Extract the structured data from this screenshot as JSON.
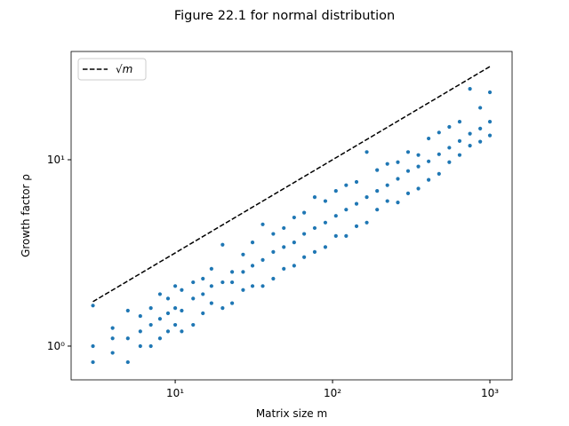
{
  "chart_data": {
    "type": "scatter",
    "title": "Figure 22.1 for normal distribution",
    "x_label": "Matrix size m",
    "y_label": "Growth factor ρ",
    "xscale": "log",
    "yscale": "log",
    "xlim": [
      2.18,
      1384
    ],
    "ylim": [
      0.659,
      38.1
    ],
    "xticks": [
      {
        "value": 10,
        "label": "10¹"
      },
      {
        "value": 100,
        "label": "10²"
      },
      {
        "value": 1000,
        "label": "10³"
      }
    ],
    "yticks": [
      {
        "value": 1,
        "label": "10⁰"
      },
      {
        "value": 10,
        "label": "10¹"
      }
    ],
    "legend": "upper left",
    "series": [
      {
        "name": "√m",
        "type": "line",
        "color": "#000000",
        "dashed": true,
        "x": [
          3,
          1000
        ],
        "y": [
          1.732,
          31.62
        ]
      },
      {
        "type": "scatter",
        "color": "#1f77b4",
        "x": [
          3,
          3,
          3,
          4,
          4,
          4,
          5,
          5,
          5,
          6,
          6,
          6,
          7,
          7,
          7,
          8,
          8,
          8,
          9,
          9,
          9,
          10,
          10,
          10,
          11,
          11,
          11,
          13,
          13,
          13,
          15,
          15,
          15,
          17,
          17,
          17,
          20,
          20,
          20,
          23,
          23,
          23,
          27,
          27,
          27,
          31,
          31,
          31,
          36,
          36,
          36,
          42,
          42,
          42,
          49,
          49,
          49,
          57,
          57,
          57,
          66,
          66,
          66,
          77,
          77,
          77,
          90,
          90,
          90,
          105,
          105,
          105,
          122,
          122,
          122,
          142,
          142,
          142,
          165,
          165,
          165,
          192,
          192,
          192,
          223,
          223,
          223,
          260,
          260,
          260,
          302,
          302,
          302,
          351,
          351,
          351,
          408,
          408,
          408,
          475,
          475,
          475,
          552,
          552,
          552,
          642,
          642,
          642,
          747,
          747,
          747,
          868,
          868,
          868,
          1000,
          1000,
          1000
        ],
        "y": [
          0.82,
          1.0,
          1.65,
          0.92,
          1.1,
          1.25,
          0.82,
          1.1,
          1.55,
          1.0,
          1.2,
          1.45,
          1.0,
          1.3,
          1.6,
          1.1,
          1.4,
          1.9,
          1.2,
          1.5,
          1.8,
          1.3,
          1.6,
          2.1,
          1.2,
          1.55,
          2.0,
          1.3,
          1.8,
          2.2,
          1.5,
          1.9,
          2.3,
          1.7,
          2.1,
          2.6,
          1.6,
          2.2,
          3.5,
          1.7,
          2.2,
          2.5,
          2.0,
          2.5,
          3.1,
          2.1,
          2.7,
          3.6,
          2.1,
          2.9,
          4.5,
          2.3,
          3.2,
          4.0,
          2.6,
          3.4,
          4.3,
          2.7,
          3.6,
          4.9,
          3.0,
          4.0,
          5.2,
          3.2,
          4.3,
          6.3,
          3.4,
          4.6,
          6.0,
          3.9,
          5.0,
          6.8,
          3.9,
          5.4,
          7.3,
          4.4,
          5.8,
          7.6,
          4.6,
          6.3,
          11.0,
          5.4,
          6.8,
          8.8,
          6.0,
          7.3,
          9.5,
          5.9,
          7.9,
          9.7,
          6.6,
          8.7,
          11.0,
          7.0,
          9.2,
          10.6,
          7.8,
          9.8,
          13.0,
          8.4,
          10.7,
          14.0,
          9.7,
          11.6,
          15.0,
          10.6,
          12.6,
          16.0,
          11.9,
          13.8,
          24.0,
          12.5,
          14.7,
          19.0,
          13.5,
          16.0,
          23.0
        ]
      }
    ]
  }
}
